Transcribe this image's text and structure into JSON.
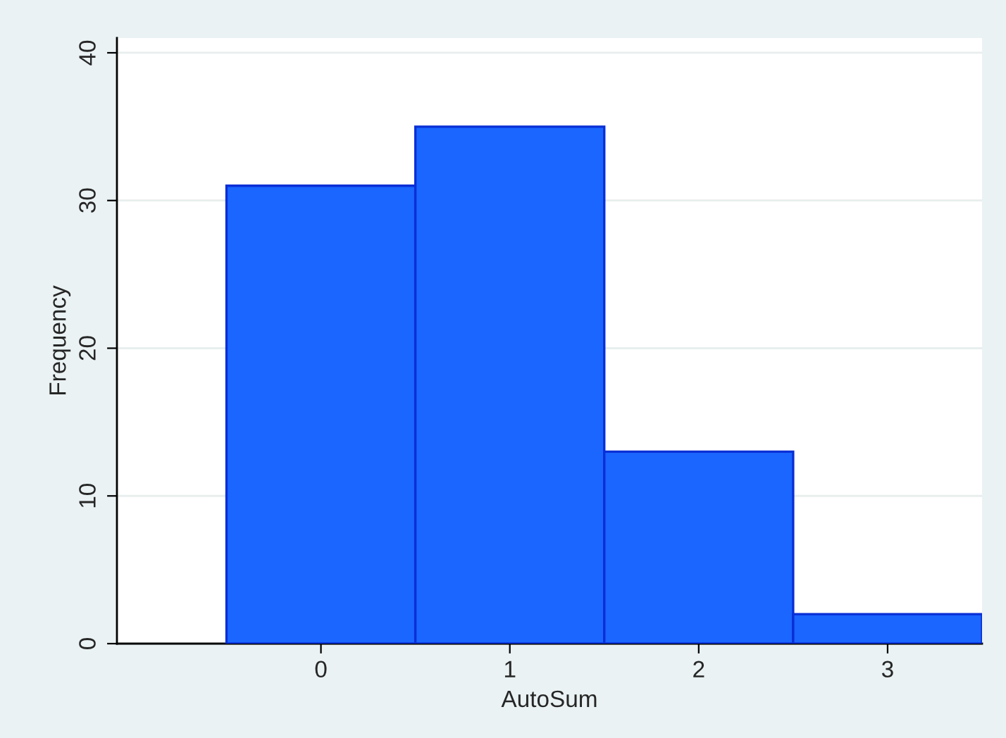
{
  "chart_data": {
    "type": "histogram",
    "xlabel": "AutoSum",
    "ylabel": "Frequency",
    "bins": [
      -0.5,
      0.5,
      1.5,
      2.5,
      3.5
    ],
    "values": [
      31,
      35,
      13,
      2
    ],
    "color": "#1a66ff",
    "xlim": [
      -1.08,
      3.5
    ],
    "xticks": [
      0,
      1,
      2,
      3
    ],
    "ylim": [
      0,
      41
    ],
    "yticks": [
      0,
      10,
      20,
      30,
      40
    ],
    "grid": "y"
  }
}
